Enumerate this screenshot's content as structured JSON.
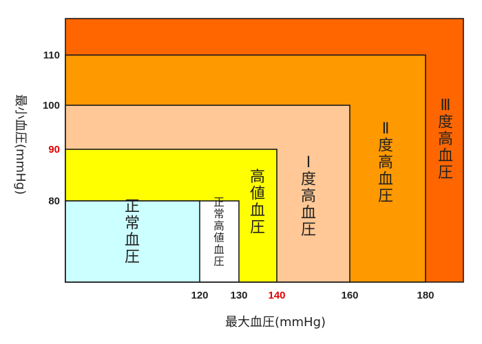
{
  "chart_data": {
    "type": "heatmap",
    "title": "",
    "xlabel": "最大血圧(mmHg)",
    "ylabel": "最小血圧(mmHg)",
    "xlim": [
      95,
      188
    ],
    "ylim": [
      62,
      117
    ],
    "x_ticks": [
      {
        "value": 120,
        "label": "120",
        "color": "#222222"
      },
      {
        "value": 130,
        "label": "130",
        "color": "#222222"
      },
      {
        "value": 140,
        "label": "140",
        "color": "#e00000"
      },
      {
        "value": 160,
        "label": "160",
        "color": "#222222"
      },
      {
        "value": 180,
        "label": "180",
        "color": "#222222"
      }
    ],
    "y_ticks": [
      {
        "value": 80,
        "label": "80",
        "color": "#222222"
      },
      {
        "value": 90,
        "label": "90",
        "color": "#e00000"
      },
      {
        "value": 100,
        "label": "100",
        "color": "#222222"
      },
      {
        "value": 110,
        "label": "110",
        "color": "#222222"
      }
    ],
    "zones": [
      {
        "name": "Ⅲ度高血圧",
        "systolic_max": 188,
        "diastolic_max": 117,
        "color": "#ff6600"
      },
      {
        "name": "Ⅱ度高血圧",
        "systolic_max": 180,
        "diastolic_max": 110,
        "color": "#ff9900"
      },
      {
        "name": "Ⅰ度高血圧",
        "systolic_max": 160,
        "diastolic_max": 100,
        "color": "#ffc896"
      },
      {
        "name": "高値血圧",
        "systolic_max": 140,
        "diastolic_max": 90,
        "color": "#ffff00"
      },
      {
        "name": "正常高値血圧",
        "systolic_max": 130,
        "diastolic_max": 80,
        "color": "#ffffff"
      },
      {
        "name": "正常血圧",
        "systolic_max": 120,
        "diastolic_max": 80,
        "color": "#ccffff"
      }
    ]
  }
}
